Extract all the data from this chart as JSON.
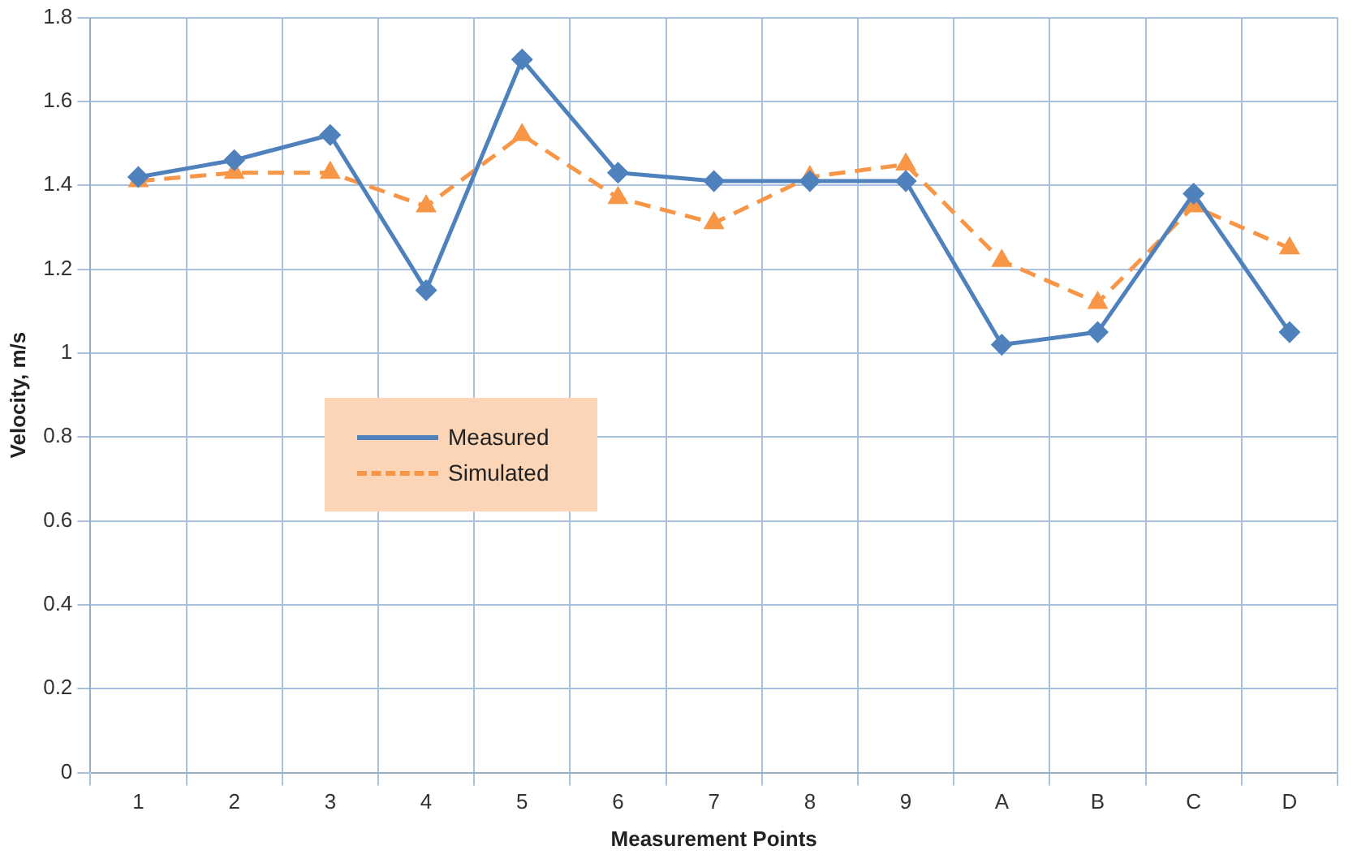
{
  "chart_data": {
    "type": "line",
    "xlabel": "Measurement Points",
    "ylabel": "Velocity, m/s",
    "categories": [
      "1",
      "2",
      "3",
      "4",
      "5",
      "6",
      "7",
      "8",
      "9",
      "A",
      "B",
      "C",
      "D"
    ],
    "series": [
      {
        "name": "Measured",
        "color": "#4f81bd",
        "marker": "diamond",
        "line_style": "solid",
        "values": [
          1.42,
          1.46,
          1.52,
          1.15,
          1.7,
          1.43,
          1.41,
          1.41,
          1.41,
          1.02,
          1.05,
          1.38,
          1.05
        ]
      },
      {
        "name": "Simulated",
        "color": "#f79646",
        "marker": "triangle",
        "line_style": "dashed",
        "values": [
          1.41,
          1.43,
          1.43,
          1.35,
          1.52,
          1.37,
          1.31,
          1.42,
          1.45,
          1.22,
          1.12,
          1.35,
          1.25
        ]
      }
    ],
    "ylim": [
      0,
      1.8
    ],
    "yticks": [
      0,
      0.2,
      0.4,
      0.6,
      0.8,
      1,
      1.2,
      1.4,
      1.6,
      1.8
    ],
    "grid": true,
    "legend": "center left"
  }
}
